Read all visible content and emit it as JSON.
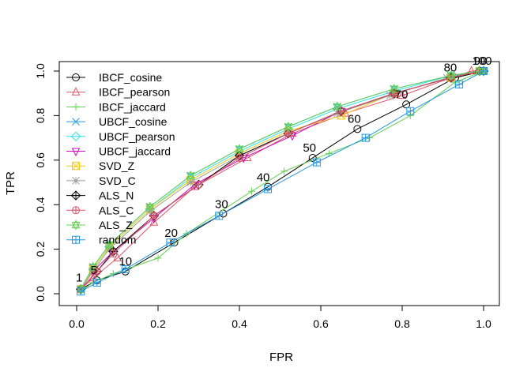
{
  "chart_data": {
    "type": "line",
    "title": "",
    "xlabel": "FPR",
    "ylabel": "TPR",
    "xlim": [
      0,
      1
    ],
    "ylim": [
      0,
      1
    ],
    "x_ticks": [
      "0.0",
      "0.2",
      "0.4",
      "0.6",
      "0.8",
      "1.0"
    ],
    "y_ticks": [
      "0.0",
      "0.2",
      "0.4",
      "0.6",
      "0.8",
      "1.0"
    ],
    "grid": false,
    "legend_position": "top-left",
    "point_labels": [
      "1",
      "5",
      "10",
      "20",
      "30",
      "40",
      "50",
      "60",
      "70",
      "80",
      "90",
      "100"
    ],
    "series": [
      {
        "name": "IBCF_cosine",
        "color": "#000000",
        "marker": "circle",
        "x": [
          0.01,
          0.05,
          0.12,
          0.24,
          0.36,
          0.47,
          0.58,
          0.69,
          0.81,
          0.93,
          1.0,
          1.0
        ],
        "y": [
          0.02,
          0.06,
          0.1,
          0.23,
          0.36,
          0.48,
          0.61,
          0.74,
          0.85,
          0.97,
          1.0,
          1.0
        ]
      },
      {
        "name": "IBCF_pearson",
        "color": "#DF536B",
        "marker": "triangle-up",
        "x": [
          0.01,
          0.04,
          0.1,
          0.19,
          0.29,
          0.42,
          0.53,
          0.66,
          0.8,
          0.92,
          0.97,
          1.0
        ],
        "y": [
          0.02,
          0.07,
          0.16,
          0.32,
          0.48,
          0.61,
          0.72,
          0.81,
          0.89,
          0.97,
          1.0,
          1.0
        ]
      },
      {
        "name": "IBCF_jaccard",
        "color": "#61D04F",
        "marker": "plus",
        "x": [
          0.01,
          0.04,
          0.09,
          0.2,
          0.27,
          0.43,
          0.51,
          0.62,
          0.72,
          0.82,
          0.93,
          1.0
        ],
        "y": [
          0.01,
          0.05,
          0.09,
          0.16,
          0.27,
          0.46,
          0.55,
          0.63,
          0.7,
          0.8,
          0.95,
          1.0
        ]
      },
      {
        "name": "UBCF_cosine",
        "color": "#2297E6",
        "marker": "x",
        "x": [
          0.01,
          0.04,
          0.08,
          0.18,
          0.28,
          0.4,
          0.52,
          0.64,
          0.78,
          0.92,
          0.99,
          1.0
        ],
        "y": [
          0.02,
          0.12,
          0.22,
          0.39,
          0.53,
          0.65,
          0.75,
          0.84,
          0.92,
          0.98,
          1.0,
          1.0
        ]
      },
      {
        "name": "UBCF_pearson",
        "color": "#28E2E5",
        "marker": "diamond",
        "x": [
          0.01,
          0.04,
          0.08,
          0.18,
          0.28,
          0.4,
          0.52,
          0.64,
          0.78,
          0.92,
          0.99,
          1.0
        ],
        "y": [
          0.02,
          0.11,
          0.21,
          0.38,
          0.52,
          0.64,
          0.74,
          0.83,
          0.91,
          0.98,
          1.0,
          1.0
        ]
      },
      {
        "name": "UBCF_jaccard",
        "color": "#CD0BBC",
        "marker": "triangle-down",
        "x": [
          0.01,
          0.04,
          0.09,
          0.19,
          0.29,
          0.41,
          0.53,
          0.65,
          0.78,
          0.92,
          0.99,
          1.0
        ],
        "y": [
          0.02,
          0.1,
          0.19,
          0.34,
          0.49,
          0.61,
          0.71,
          0.82,
          0.9,
          0.97,
          1.0,
          1.0
        ]
      },
      {
        "name": "SVD_Z",
        "color": "#F5C710",
        "marker": "square-x",
        "x": [
          0.01,
          0.04,
          0.08,
          0.18,
          0.28,
          0.4,
          0.52,
          0.65,
          0.78,
          0.92,
          0.99,
          1.0
        ],
        "y": [
          0.02,
          0.11,
          0.21,
          0.38,
          0.51,
          0.63,
          0.73,
          0.8,
          0.9,
          0.97,
          1.0,
          1.0
        ]
      },
      {
        "name": "SVD_C",
        "color": "#9E9E9E",
        "marker": "asterisk",
        "x": [
          0.01,
          0.04,
          0.08,
          0.18,
          0.28,
          0.4,
          0.52,
          0.64,
          0.77,
          0.91,
          0.99,
          1.0
        ],
        "y": [
          0.02,
          0.1,
          0.2,
          0.37,
          0.5,
          0.62,
          0.72,
          0.81,
          0.89,
          0.97,
          1.0,
          1.0
        ]
      },
      {
        "name": "ALS_N",
        "color": "#000000",
        "marker": "diamond-plus",
        "x": [
          0.01,
          0.05,
          0.09,
          0.19,
          0.3,
          0.4,
          0.52,
          0.65,
          0.78,
          0.92,
          0.99,
          1.0
        ],
        "y": [
          0.02,
          0.1,
          0.19,
          0.35,
          0.49,
          0.62,
          0.72,
          0.82,
          0.9,
          0.97,
          1.0,
          1.0
        ]
      },
      {
        "name": "ALS_C",
        "color": "#DF536B",
        "marker": "circle-plus",
        "x": [
          0.01,
          0.05,
          0.09,
          0.19,
          0.3,
          0.4,
          0.52,
          0.65,
          0.78,
          0.92,
          0.99,
          1.0
        ],
        "y": [
          0.02,
          0.1,
          0.18,
          0.35,
          0.49,
          0.61,
          0.72,
          0.82,
          0.9,
          0.97,
          1.0,
          1.0
        ]
      },
      {
        "name": "ALS_Z",
        "color": "#61D04F",
        "marker": "star-triangles",
        "x": [
          0.01,
          0.04,
          0.08,
          0.18,
          0.28,
          0.4,
          0.52,
          0.64,
          0.78,
          0.92,
          0.99,
          1.0
        ],
        "y": [
          0.02,
          0.12,
          0.22,
          0.39,
          0.53,
          0.65,
          0.75,
          0.84,
          0.92,
          0.98,
          1.0,
          1.0
        ]
      },
      {
        "name": "random",
        "color": "#2297E6",
        "marker": "square-plus",
        "x": [
          0.01,
          0.05,
          0.12,
          0.23,
          0.35,
          0.47,
          0.59,
          0.71,
          0.82,
          0.94,
          1.0,
          1.0
        ],
        "y": [
          0.01,
          0.05,
          0.11,
          0.23,
          0.35,
          0.47,
          0.59,
          0.7,
          0.82,
          0.94,
          1.0,
          1.0
        ]
      }
    ]
  }
}
